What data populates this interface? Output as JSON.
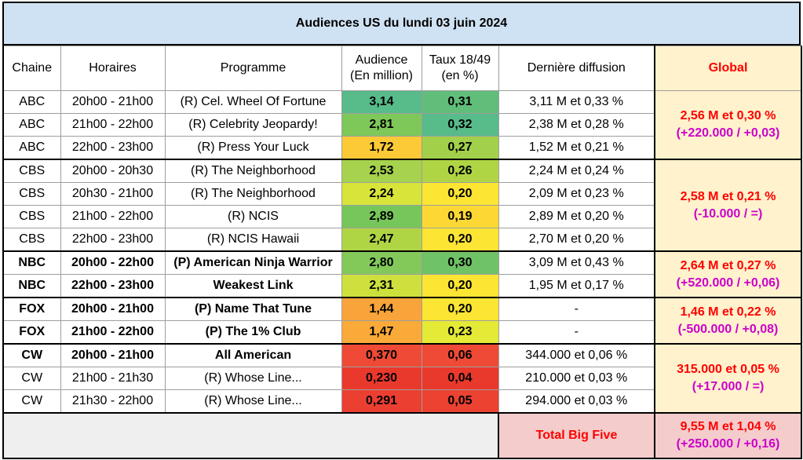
{
  "title": "Audiences US du lundi 03 juin 2024",
  "headers": {
    "chaine": "Chaine",
    "horaires": "Horaires",
    "programme": "Programme",
    "audience_l1": "Audience",
    "audience_l2": "(En million)",
    "taux_l1": "Taux 18/49",
    "taux_l2": "(en %)",
    "derniere": "Dernière diffusion",
    "global": "Global"
  },
  "rows": [
    {
      "chaine": "ABC",
      "horaires": "20h00 - 21h00",
      "programme": "(R) Cel. Wheel Of Fortune",
      "audience": "3,14",
      "taux": "0,31",
      "derniere": "3,11 M et 0,33 %",
      "aud_color": "#57bb8a",
      "taux_color": "#60be7a"
    },
    {
      "chaine": "ABC",
      "horaires": "21h00 - 22h00",
      "programme": "(R) Celebrity Jeopardy!",
      "audience": "2,81",
      "taux": "0,32",
      "derniere": "2,38 M et 0,28 %",
      "aud_color": "#7ec85a",
      "taux_color": "#57bb8a"
    },
    {
      "chaine": "ABC",
      "horaires": "22h00 - 23h00",
      "programme": "(R) Press Your Luck",
      "audience": "1,72",
      "taux": "0,27",
      "derniere": "1,52 M et 0,21 %",
      "aud_color": "#fcc937",
      "taux_color": "#a2d04a"
    },
    {
      "chaine": "CBS",
      "horaires": "20h00 - 20h30",
      "programme": "(R) The Neighborhood",
      "audience": "2,53",
      "taux": "0,26",
      "derniere": "2,24 M et 0,24 %",
      "aud_color": "#a6d24d",
      "taux_color": "#b0d544"
    },
    {
      "chaine": "CBS",
      "horaires": "20h30 - 21h00",
      "programme": "(R) The Neighborhood",
      "audience": "2,24",
      "taux": "0,20",
      "derniere": "2,09 M et 0,23 %",
      "aud_color": "#d8e43a",
      "taux_color": "#fde533"
    },
    {
      "chaine": "CBS",
      "horaires": "21h00 - 22h00",
      "programme": "(R) NCIS",
      "audience": "2,89",
      "taux": "0,19",
      "derniere": "2,89 M et 0,20 %",
      "aud_color": "#77c65b",
      "taux_color": "#fdd835"
    },
    {
      "chaine": "CBS",
      "horaires": "22h00 - 23h00",
      "programme": "(R) NCIS Hawaii",
      "audience": "2,47",
      "taux": "0,20",
      "derniere": "2,70 M et 0,20 %",
      "aud_color": "#b0d544",
      "taux_color": "#fde533"
    },
    {
      "chaine": "NBC",
      "horaires": "20h00 - 22h00",
      "programme": "(P) American Ninja Warrior",
      "audience": "2,80",
      "taux": "0,30",
      "derniere": "3,09 M et 0,43 %",
      "aud_color": "#82c95a",
      "taux_color": "#6fc266",
      "bold": true
    },
    {
      "chaine": "NBC",
      "horaires": "22h00 - 23h00",
      "programme": "Weakest Link",
      "audience": "2,31",
      "taux": "0,20",
      "derniere": "1,95 M et 0,17 %",
      "aud_color": "#cde03d",
      "taux_color": "#fde533",
      "bold": true
    },
    {
      "chaine": "FOX",
      "horaires": "20h00 - 21h00",
      "programme": "(P) Name That Tune",
      "audience": "1,44",
      "taux": "0,20",
      "derniere": "-",
      "aud_color": "#f9a43a",
      "taux_color": "#fde533",
      "bold": true
    },
    {
      "chaine": "FOX",
      "horaires": "21h00 - 22h00",
      "programme": "(P) The 1% Club",
      "audience": "1,47",
      "taux": "0,23",
      "derniere": "-",
      "aud_color": "#faaa38",
      "taux_color": "#e4ea36",
      "bold": true
    },
    {
      "chaine": "CW",
      "horaires": "20h00 - 21h00",
      "programme": "All American",
      "audience": "0,370",
      "taux": "0,06",
      "derniere": "344.000 et 0,06 %",
      "aud_color": "#ee4a36",
      "taux_color": "#ee4a36",
      "bold": true
    },
    {
      "chaine": "CW",
      "horaires": "21h00 - 21h30",
      "programme": "(R) Whose Line...",
      "audience": "0,230",
      "taux": "0,04",
      "derniere": "210.000 et 0,03 %",
      "aud_color": "#e9392c",
      "taux_color": "#e9392c"
    },
    {
      "chaine": "CW",
      "horaires": "21h30 - 22h00",
      "programme": "(R) Whose Line...",
      "audience": "0,291",
      "taux": "0,05",
      "derniere": "294.000 et 0,03 %",
      "aud_color": "#eb3f31",
      "taux_color": "#eb4232"
    }
  ],
  "globals": [
    {
      "main": "2,56 M et 0,30 %",
      "delta": "(+220.000 / +0,03)"
    },
    {
      "main": "2,58 M et 0,21 %",
      "delta": "(-10.000 / =)"
    },
    {
      "main": "2,64 M et 0,27 %",
      "delta": "(+520.000 / +0,06)"
    },
    {
      "main": "1,46 M et 0,22 %",
      "delta": "(-500.000 / +0,08)"
    },
    {
      "main": "315.000 et 0,05 %",
      "delta": "(+17.000 / =)"
    }
  ],
  "total": {
    "label": "Total Big Five",
    "main": "9,55 M et 1,04 %",
    "delta": "(+250.000 / +0,16)"
  }
}
